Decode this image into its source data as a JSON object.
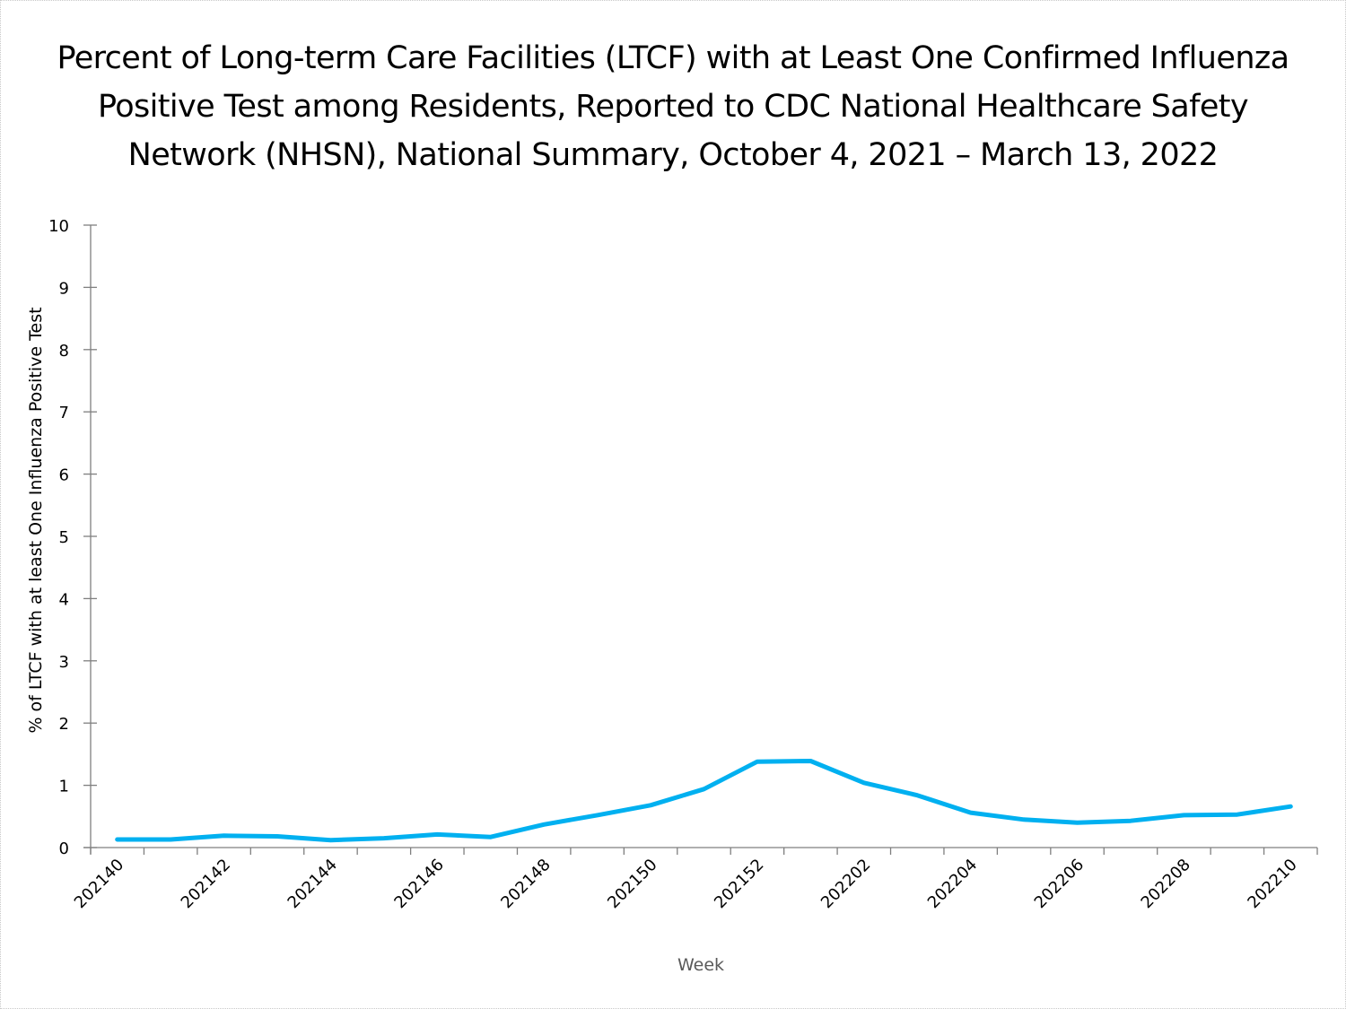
{
  "chart_data": {
    "type": "line",
    "title_lines": [
      "Percent of Long-term Care Facilities (LTCF) with at Least One Confirmed Influenza",
      "Positive Test among Residents, Reported to CDC National Healthcare Safety",
      "Network (NHSN), National Summary, October 4, 2021 – March 13, 2022"
    ],
    "xlabel": "Week",
    "ylabel": "% of LTCF with at least One Influenza Positive Test",
    "ylim": [
      0,
      10
    ],
    "yticks": [
      0,
      1,
      2,
      3,
      4,
      5,
      6,
      7,
      8,
      9,
      10
    ],
    "grid": false,
    "legend": "none",
    "line_color": "#00b0f0",
    "axis_color": "#7f7f7f",
    "categories": [
      "202140",
      "202141",
      "202142",
      "202143",
      "202144",
      "202145",
      "202146",
      "202147",
      "202148",
      "202149",
      "202150",
      "202151",
      "202152",
      "202201",
      "202202",
      "202203",
      "202204",
      "202205",
      "202206",
      "202207",
      "202208",
      "202209",
      "202210"
    ],
    "xtick_labels_shown": [
      "202140",
      "202142",
      "202144",
      "202146",
      "202148",
      "202150",
      "202152",
      "202202",
      "202204",
      "202206",
      "202208",
      "202210"
    ],
    "series": [
      {
        "name": "% of LTCF with at least One Influenza Positive Test",
        "values": [
          0.13,
          0.13,
          0.19,
          0.18,
          0.12,
          0.15,
          0.21,
          0.17,
          0.37,
          0.52,
          0.68,
          0.94,
          1.38,
          1.39,
          1.04,
          0.84,
          0.56,
          0.45,
          0.4,
          0.43,
          0.52,
          0.53,
          0.66
        ]
      }
    ]
  }
}
